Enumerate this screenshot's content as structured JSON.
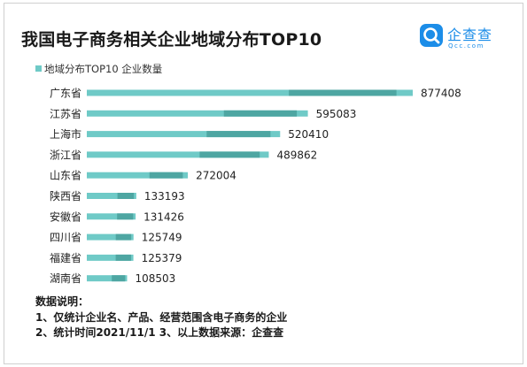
{
  "title": "我国电子商务相关企业地域分布TOP10",
  "logo": {
    "name": "企查查",
    "domain": "Qcc.com"
  },
  "colors": {
    "bar_light": "#6fcac7",
    "bar_dark": "#4ea6a2",
    "accent": "#1c8de8"
  },
  "notes": {
    "heading": "数据说明：",
    "line1": "1、仅统计企业名、产品、经营范围含电子商务的企业",
    "line2": "2、统计时间2021/11/1   3、以上数据来源：企查查"
  },
  "chart_data": {
    "type": "bar",
    "orientation": "horizontal",
    "categories": [
      "广东省",
      "江苏省",
      "上海市",
      "浙江省",
      "山东省",
      "陕西省",
      "安徽省",
      "四川省",
      "福建省",
      "湖南省"
    ],
    "series": [
      {
        "name": "地域分布TOP10 企业数量",
        "values": [
          877408,
          595083,
          520410,
          489862,
          272004,
          133193,
          131426,
          125749,
          125379,
          108503
        ]
      }
    ],
    "legend": "top-left",
    "grid": false
  }
}
